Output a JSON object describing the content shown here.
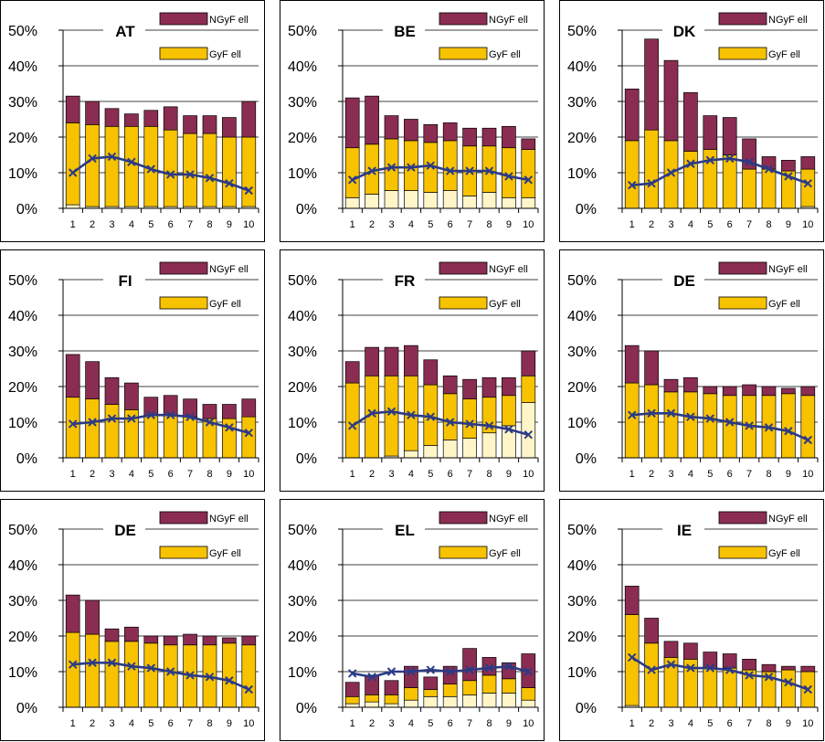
{
  "colors": {
    "ngyf": "#8B2D52",
    "gyf": "#F7C200",
    "base": "#FFF5C8",
    "line": "#2B3A86",
    "frame": "#000000"
  },
  "legend": {
    "ngyf_label": "NGyF ell",
    "gyf_label": "GyF ell"
  },
  "chart_data": [
    {
      "type": "bar",
      "title": "AT",
      "categories": [
        "1",
        "2",
        "3",
        "4",
        "5",
        "6",
        "7",
        "8",
        "9",
        "10"
      ],
      "y_ticks": [
        "0%",
        "10%",
        "20%",
        "30%",
        "40%",
        "50%"
      ],
      "ylim": [
        0,
        50
      ],
      "stack_base": [
        1,
        0.5,
        0.5,
        0.5,
        0.5,
        0.5,
        0.5,
        0.5,
        0.5,
        0.5
      ],
      "stack_gyf": [
        24,
        23.5,
        23,
        23,
        23,
        22,
        21,
        21,
        20,
        20
      ],
      "stack_total": [
        31.5,
        30,
        28,
        26.5,
        27.5,
        28.5,
        26,
        26,
        25.5,
        30
      ],
      "line": [
        10,
        14,
        14.5,
        13,
        11,
        9.5,
        9.5,
        8.5,
        7,
        5
      ]
    },
    {
      "type": "bar",
      "title": "BE",
      "categories": [
        "1",
        "2",
        "3",
        "4",
        "5",
        "6",
        "7",
        "8",
        "9",
        "10"
      ],
      "y_ticks": [
        "0%",
        "10%",
        "20%",
        "30%",
        "40%",
        "50%"
      ],
      "ylim": [
        0,
        50
      ],
      "stack_base": [
        3,
        4,
        5,
        5,
        4.5,
        5,
        3.5,
        4.5,
        3,
        3
      ],
      "stack_gyf": [
        17,
        18,
        19.5,
        19,
        18.5,
        19,
        17.5,
        17.5,
        17,
        16.5
      ],
      "stack_total": [
        31,
        31.5,
        26,
        25,
        23.5,
        24,
        22.5,
        22.5,
        23,
        19.5
      ],
      "line": [
        8,
        10.5,
        11.5,
        11.5,
        12,
        10.5,
        10.5,
        10.5,
        9,
        8
      ]
    },
    {
      "type": "bar",
      "title": "DK",
      "categories": [
        "1",
        "2",
        "3",
        "4",
        "5",
        "6",
        "7",
        "8",
        "9",
        "10"
      ],
      "y_ticks": [
        "0%",
        "10%",
        "20%",
        "30%",
        "40%",
        "50%"
      ],
      "ylim": [
        0,
        50
      ],
      "stack_base": [
        0,
        0,
        0,
        0,
        0,
        0,
        0,
        0,
        0,
        0.5
      ],
      "stack_gyf": [
        19,
        22,
        19,
        16,
        16.5,
        15,
        11,
        11,
        10.5,
        11
      ],
      "stack_total": [
        33.5,
        47.5,
        41.5,
        32.5,
        26,
        25.5,
        19.5,
        14.5,
        13.5,
        14.5
      ],
      "line": [
        6.5,
        7,
        10,
        12.5,
        13.5,
        14,
        13,
        11,
        9,
        7
      ]
    },
    {
      "type": "bar",
      "title": "FI",
      "categories": [
        "1",
        "2",
        "3",
        "4",
        "5",
        "6",
        "7",
        "8",
        "9",
        "10"
      ],
      "y_ticks": [
        "0%",
        "10%",
        "20%",
        "30%",
        "40%",
        "50%"
      ],
      "ylim": [
        0,
        50
      ],
      "stack_base": [
        0,
        0,
        0,
        0,
        0,
        0,
        0,
        0,
        0,
        0
      ],
      "stack_gyf": [
        17,
        16.5,
        15,
        13.5,
        12,
        12,
        11.5,
        11,
        11,
        11.5
      ],
      "stack_total": [
        29,
        27,
        22.5,
        21,
        17,
        17.5,
        16.5,
        15,
        15,
        16.5
      ],
      "line": [
        9.5,
        10,
        11,
        11,
        12,
        12,
        11.5,
        10,
        8.5,
        7
      ]
    },
    {
      "type": "bar",
      "title": "FR",
      "categories": [
        "1",
        "2",
        "3",
        "4",
        "5",
        "6",
        "7",
        "8",
        "9",
        "10"
      ],
      "y_ticks": [
        "0%",
        "10%",
        "20%",
        "30%",
        "40%",
        "50%"
      ],
      "ylim": [
        0,
        50
      ],
      "stack_base": [
        0,
        0,
        0.5,
        2,
        3.5,
        5,
        5.5,
        7,
        9,
        15.5
      ],
      "stack_gyf": [
        21,
        23,
        23,
        23,
        20.5,
        18,
        16.5,
        17,
        17.5,
        23
      ],
      "stack_total": [
        27,
        31,
        31,
        31.5,
        27.5,
        23,
        22,
        22.5,
        22.5,
        30
      ],
      "line": [
        9,
        12.5,
        13,
        12,
        11.5,
        10,
        9.5,
        9,
        8,
        6.5
      ]
    },
    {
      "type": "bar",
      "title": "DE",
      "categories": [
        "1",
        "2",
        "3",
        "4",
        "5",
        "6",
        "7",
        "8",
        "9",
        "10"
      ],
      "y_ticks": [
        "0%",
        "10%",
        "20%",
        "30%",
        "40%",
        "50%"
      ],
      "ylim": [
        0,
        50
      ],
      "stack_base": [
        0,
        0,
        0,
        0,
        0,
        0,
        0,
        0,
        0,
        0
      ],
      "stack_gyf": [
        21,
        20.5,
        18.5,
        18.5,
        18,
        17.5,
        17.5,
        17.5,
        18,
        17.5
      ],
      "stack_total": [
        31.5,
        30,
        22,
        22.5,
        20,
        20,
        20.5,
        20,
        19.5,
        20
      ],
      "line": [
        12,
        12.5,
        12.5,
        11.5,
        11,
        10,
        9,
        8.5,
        7.5,
        5
      ]
    },
    {
      "type": "bar",
      "title": "DE",
      "categories": [
        "1",
        "2",
        "3",
        "4",
        "5",
        "6",
        "7",
        "8",
        "9",
        "10"
      ],
      "y_ticks": [
        "0%",
        "10%",
        "20%",
        "30%",
        "40%",
        "50%"
      ],
      "ylim": [
        0,
        50
      ],
      "stack_base": [
        0,
        0,
        0,
        0,
        0,
        0,
        0,
        0,
        0,
        0
      ],
      "stack_gyf": [
        21,
        20.5,
        18.5,
        18.5,
        18,
        17.5,
        17.5,
        17.5,
        18,
        17.5
      ],
      "stack_total": [
        31.5,
        30,
        22,
        22.5,
        20,
        20,
        20.5,
        20,
        19.5,
        20
      ],
      "line": [
        12,
        12.5,
        12.5,
        11.5,
        11,
        10,
        9,
        8.5,
        7.5,
        5
      ]
    },
    {
      "type": "bar",
      "title": "EL",
      "categories": [
        "1",
        "2",
        "3",
        "4",
        "5",
        "6",
        "7",
        "8",
        "9",
        "10"
      ],
      "y_ticks": [
        "0%",
        "10%",
        "20%",
        "30%",
        "40%",
        "50%"
      ],
      "ylim": [
        0,
        50
      ],
      "stack_base": [
        1,
        1.5,
        1,
        2,
        3,
        3,
        3.5,
        4,
        4,
        2
      ],
      "stack_gyf": [
        3,
        3.5,
        3.5,
        5.5,
        5,
        6.5,
        7.5,
        9,
        8,
        5.5
      ],
      "stack_total": [
        7,
        9,
        7.5,
        11.5,
        8.5,
        11.5,
        16.5,
        14,
        12.5,
        15
      ],
      "line": [
        9.5,
        8.5,
        10,
        10,
        10.5,
        10,
        10.5,
        11,
        11.5,
        10
      ]
    },
    {
      "type": "bar",
      "title": "IE",
      "categories": [
        "1",
        "2",
        "3",
        "4",
        "5",
        "6",
        "7",
        "8",
        "9",
        "10"
      ],
      "y_ticks": [
        "0%",
        "10%",
        "20%",
        "30%",
        "40%",
        "50%"
      ],
      "ylim": [
        0,
        50
      ],
      "stack_base": [
        0.5,
        0,
        0,
        0,
        0,
        0,
        0,
        0,
        0,
        0
      ],
      "stack_gyf": [
        26,
        18,
        14,
        13.5,
        11,
        11,
        10.5,
        10,
        10.5,
        10
      ],
      "stack_total": [
        34,
        25,
        18.5,
        18,
        15.5,
        15,
        13.5,
        12,
        11.5,
        11.5
      ],
      "line": [
        14,
        10.5,
        12,
        11,
        11,
        10.5,
        9,
        8.5,
        7,
        5
      ]
    }
  ]
}
